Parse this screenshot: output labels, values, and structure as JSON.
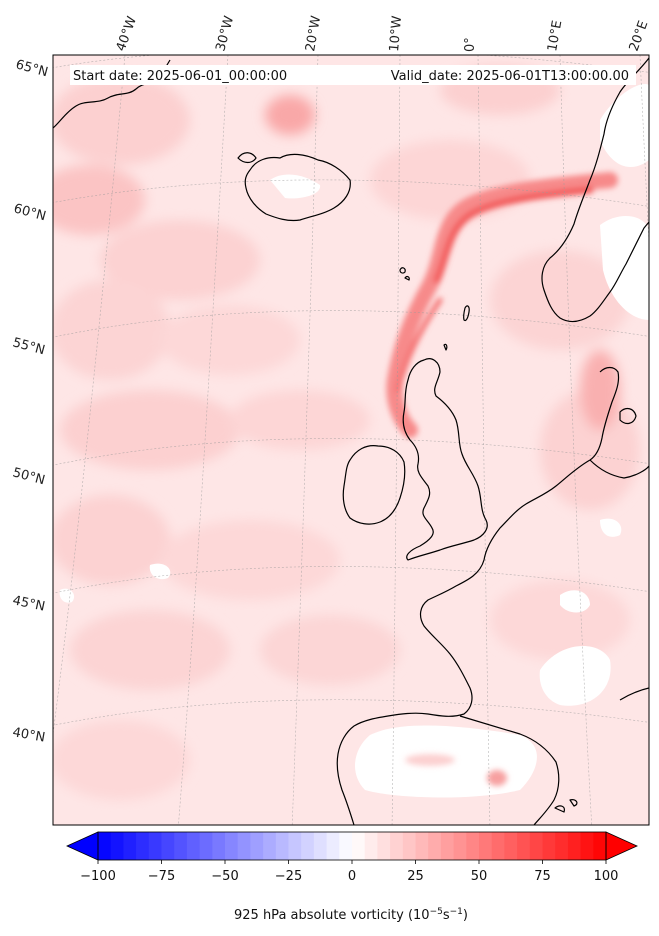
{
  "header": {
    "start_date": "Start date: 2025-06-01_00:00:00",
    "valid_date": "Valid_date: 2025-06-01T13:00:00.00"
  },
  "map": {
    "projection": "polar-stereographic",
    "lon_labels": [
      "40°W",
      "30°W",
      "20°W",
      "10°W",
      "0°",
      "10°E",
      "20°E"
    ],
    "lat_labels": [
      "65°N",
      "60°N",
      "55°N",
      "50°N",
      "45°N",
      "40°N"
    ],
    "gridlines": true,
    "background_color": "#fee6e6",
    "coastline_color": "#000000"
  },
  "colorbar": {
    "min": -100,
    "max": 100,
    "ticks": [
      "−100",
      "−75",
      "−50",
      "−25",
      "0",
      "25",
      "50",
      "75",
      "100"
    ],
    "label_main": "925 hPa absolute vorticity (10",
    "label_exp1": "−5",
    "label_mid": "s",
    "label_exp2": "−1",
    "label_end": ")",
    "extend": "both",
    "color_low": "#0000ff",
    "color_mid": "#ffffff",
    "color_high": "#ff0000"
  }
}
